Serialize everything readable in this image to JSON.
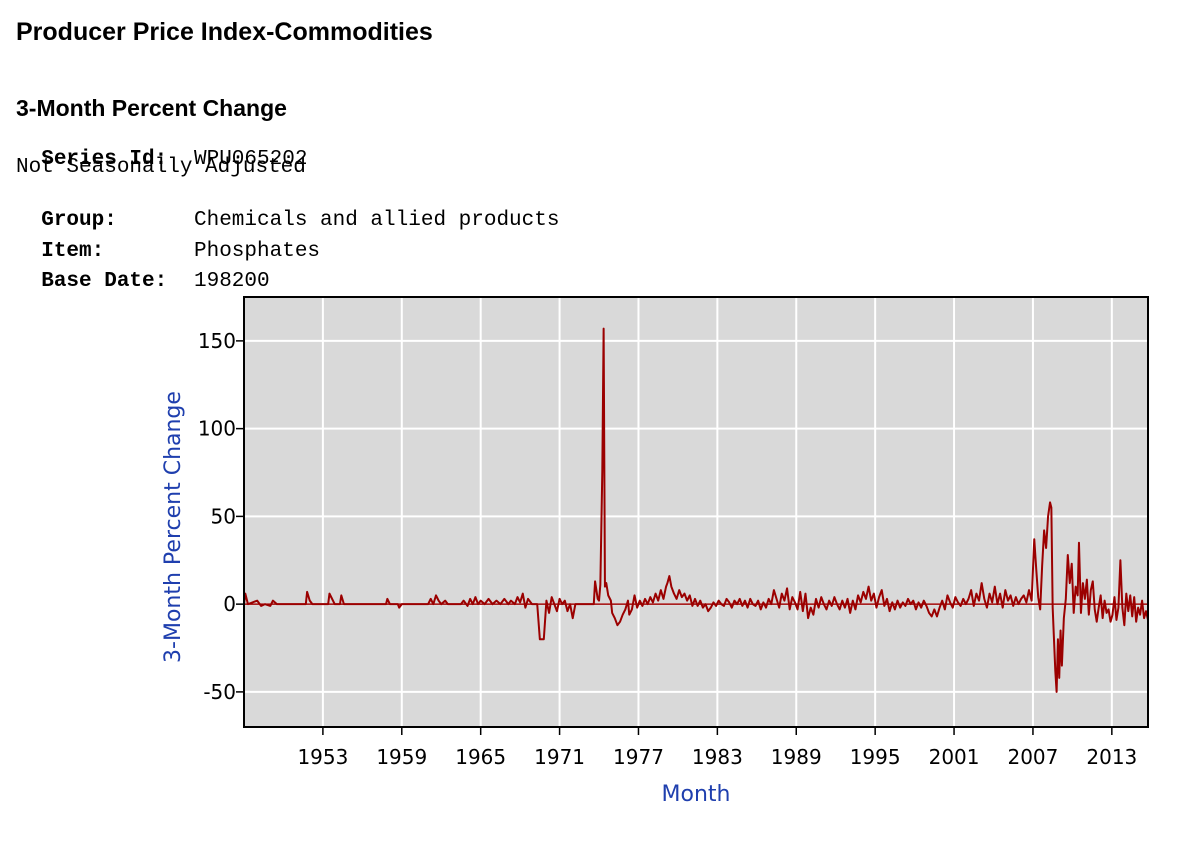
{
  "header": {
    "title": "Producer Price Index-Commodities",
    "subtitle": "3-Month Percent Change"
  },
  "meta": {
    "series_label": "Series Id:",
    "series_value": "WPU065202",
    "seasonal": "Not Seasonally Adjusted",
    "group_label": "Group:",
    "group_value": "Chemicals and allied products",
    "item_label": "Item:",
    "item_value": "Phosphates",
    "base_label": "Base Date:",
    "base_value": "198200"
  },
  "chart_data": {
    "type": "line",
    "title": "",
    "xlabel": "Month",
    "ylabel": "3-Month Percent Change",
    "xlim": [
      1947.0,
      2015.75
    ],
    "ylim": [
      -70,
      175
    ],
    "x_ticks": [
      1953,
      1959,
      1965,
      1971,
      1977,
      1983,
      1989,
      1995,
      2001,
      2007,
      2013
    ],
    "y_ticks": [
      -50,
      0,
      50,
      100,
      150
    ],
    "grid": true,
    "colors": {
      "line": "#9b0000",
      "plot_bg": "#d9d9d9",
      "grid": "#ffffff",
      "axis_label": "#1f3fae"
    },
    "series": [
      {
        "name": "WPU065202",
        "points": [
          [
            1947.0,
            0
          ],
          [
            1947.1,
            6
          ],
          [
            1947.3,
            0
          ],
          [
            1948.0,
            2
          ],
          [
            1948.3,
            -1
          ],
          [
            1948.6,
            0
          ],
          [
            1949.0,
            -1
          ],
          [
            1949.2,
            2
          ],
          [
            1949.5,
            0
          ],
          [
            1950.0,
            0
          ],
          [
            1951.0,
            0
          ],
          [
            1951.7,
            0
          ],
          [
            1951.8,
            7
          ],
          [
            1952.0,
            2
          ],
          [
            1952.2,
            0
          ],
          [
            1953.0,
            0
          ],
          [
            1953.4,
            0
          ],
          [
            1953.5,
            6
          ],
          [
            1953.7,
            3
          ],
          [
            1953.9,
            0
          ],
          [
            1954.3,
            0
          ],
          [
            1954.4,
            5
          ],
          [
            1954.6,
            0
          ],
          [
            1957.8,
            0
          ],
          [
            1957.9,
            3
          ],
          [
            1958.1,
            0
          ],
          [
            1958.7,
            0
          ],
          [
            1958.8,
            -2
          ],
          [
            1959.0,
            0
          ],
          [
            1961.0,
            0
          ],
          [
            1961.2,
            3
          ],
          [
            1961.4,
            0
          ],
          [
            1961.6,
            5
          ],
          [
            1961.8,
            2
          ],
          [
            1962.0,
            0
          ],
          [
            1962.3,
            2
          ],
          [
            1962.5,
            0
          ],
          [
            1963.5,
            0
          ],
          [
            1963.7,
            2
          ],
          [
            1964.0,
            -1
          ],
          [
            1964.2,
            3
          ],
          [
            1964.4,
            0
          ],
          [
            1964.6,
            4
          ],
          [
            1964.8,
            0
          ],
          [
            1965.0,
            2
          ],
          [
            1965.3,
            0
          ],
          [
            1965.6,
            3
          ],
          [
            1965.9,
            0
          ],
          [
            1966.2,
            2
          ],
          [
            1966.5,
            0
          ],
          [
            1966.8,
            3
          ],
          [
            1967.1,
            0
          ],
          [
            1967.3,
            2
          ],
          [
            1967.6,
            0
          ],
          [
            1967.8,
            4
          ],
          [
            1968.0,
            1
          ],
          [
            1968.2,
            6
          ],
          [
            1968.4,
            -2
          ],
          [
            1968.6,
            3
          ],
          [
            1968.9,
            0
          ],
          [
            1969.3,
            0
          ],
          [
            1969.5,
            -20
          ],
          [
            1969.8,
            -20
          ],
          [
            1970.0,
            2
          ],
          [
            1970.2,
            -5
          ],
          [
            1970.4,
            4
          ],
          [
            1970.6,
            0
          ],
          [
            1970.8,
            -4
          ],
          [
            1971.0,
            3
          ],
          [
            1971.2,
            0
          ],
          [
            1971.4,
            2
          ],
          [
            1971.6,
            -4
          ],
          [
            1971.8,
            0
          ],
          [
            1972.0,
            -8
          ],
          [
            1972.2,
            0
          ],
          [
            1973.0,
            0
          ],
          [
            1973.6,
            0
          ],
          [
            1973.7,
            13
          ],
          [
            1973.9,
            3
          ],
          [
            1974.0,
            2
          ],
          [
            1974.1,
            11
          ],
          [
            1974.25,
            76
          ],
          [
            1974.35,
            157
          ],
          [
            1974.45,
            10
          ],
          [
            1974.55,
            12
          ],
          [
            1974.7,
            5
          ],
          [
            1974.9,
            2
          ],
          [
            1975.0,
            -5
          ],
          [
            1975.2,
            -8
          ],
          [
            1975.4,
            -12
          ],
          [
            1975.6,
            -10
          ],
          [
            1975.8,
            -6
          ],
          [
            1976.0,
            -3
          ],
          [
            1976.2,
            2
          ],
          [
            1976.3,
            -6
          ],
          [
            1976.5,
            -3
          ],
          [
            1976.7,
            5
          ],
          [
            1976.9,
            -2
          ],
          [
            1977.1,
            2
          ],
          [
            1977.3,
            -1
          ],
          [
            1977.5,
            3
          ],
          [
            1977.7,
            0
          ],
          [
            1977.9,
            4
          ],
          [
            1978.1,
            1
          ],
          [
            1978.3,
            6
          ],
          [
            1978.5,
            2
          ],
          [
            1978.7,
            8
          ],
          [
            1978.9,
            3
          ],
          [
            1979.1,
            10
          ],
          [
            1979.2,
            12
          ],
          [
            1979.35,
            16
          ],
          [
            1979.5,
            10
          ],
          [
            1979.7,
            6
          ],
          [
            1979.9,
            3
          ],
          [
            1980.1,
            8
          ],
          [
            1980.3,
            4
          ],
          [
            1980.5,
            6
          ],
          [
            1980.7,
            2
          ],
          [
            1980.9,
            5
          ],
          [
            1981.1,
            -1
          ],
          [
            1981.3,
            3
          ],
          [
            1981.5,
            -1
          ],
          [
            1981.7,
            2
          ],
          [
            1981.9,
            -2
          ],
          [
            1982.1,
            0
          ],
          [
            1982.3,
            -4
          ],
          [
            1982.5,
            -2
          ],
          [
            1982.7,
            1
          ],
          [
            1982.9,
            -1
          ],
          [
            1983.1,
            2
          ],
          [
            1983.3,
            0
          ],
          [
            1983.5,
            -1
          ],
          [
            1983.7,
            3
          ],
          [
            1983.9,
            1
          ],
          [
            1984.1,
            -2
          ],
          [
            1984.3,
            2
          ],
          [
            1984.5,
            0
          ],
          [
            1984.7,
            3
          ],
          [
            1984.9,
            -1
          ],
          [
            1985.1,
            2
          ],
          [
            1985.3,
            -2
          ],
          [
            1985.5,
            3
          ],
          [
            1985.7,
            0
          ],
          [
            1985.9,
            -1
          ],
          [
            1986.1,
            2
          ],
          [
            1986.3,
            -3
          ],
          [
            1986.5,
            1
          ],
          [
            1986.7,
            -2
          ],
          [
            1986.9,
            3
          ],
          [
            1987.1,
            0
          ],
          [
            1987.3,
            8
          ],
          [
            1987.5,
            3
          ],
          [
            1987.7,
            -2
          ],
          [
            1987.9,
            6
          ],
          [
            1988.1,
            2
          ],
          [
            1988.3,
            9
          ],
          [
            1988.5,
            -3
          ],
          [
            1988.7,
            4
          ],
          [
            1988.9,
            1
          ],
          [
            1989.1,
            -3
          ],
          [
            1989.3,
            7
          ],
          [
            1989.5,
            -4
          ],
          [
            1989.7,
            6
          ],
          [
            1989.9,
            -8
          ],
          [
            1990.1,
            -2
          ],
          [
            1990.3,
            -6
          ],
          [
            1990.5,
            3
          ],
          [
            1990.7,
            -2
          ],
          [
            1990.9,
            4
          ],
          [
            1991.1,
            0
          ],
          [
            1991.3,
            -3
          ],
          [
            1991.5,
            2
          ],
          [
            1991.7,
            -1
          ],
          [
            1991.9,
            4
          ],
          [
            1992.1,
            0
          ],
          [
            1992.3,
            -3
          ],
          [
            1992.5,
            2
          ],
          [
            1992.7,
            -2
          ],
          [
            1992.9,
            3
          ],
          [
            1993.1,
            -5
          ],
          [
            1993.3,
            2
          ],
          [
            1993.5,
            -3
          ],
          [
            1993.7,
            5
          ],
          [
            1993.9,
            1
          ],
          [
            1994.1,
            7
          ],
          [
            1994.3,
            3
          ],
          [
            1994.5,
            10
          ],
          [
            1994.7,
            2
          ],
          [
            1994.9,
            6
          ],
          [
            1995.1,
            -2
          ],
          [
            1995.3,
            4
          ],
          [
            1995.5,
            8
          ],
          [
            1995.7,
            -1
          ],
          [
            1995.9,
            3
          ],
          [
            1996.1,
            -4
          ],
          [
            1996.3,
            1
          ],
          [
            1996.5,
            -3
          ],
          [
            1996.7,
            2
          ],
          [
            1996.9,
            -2
          ],
          [
            1997.1,
            1
          ],
          [
            1997.3,
            -1
          ],
          [
            1997.5,
            3
          ],
          [
            1997.7,
            0
          ],
          [
            1997.9,
            2
          ],
          [
            1998.1,
            -3
          ],
          [
            1998.3,
            1
          ],
          [
            1998.5,
            -2
          ],
          [
            1998.7,
            2
          ],
          [
            1998.9,
            -1
          ],
          [
            1999.1,
            -5
          ],
          [
            1999.3,
            -7
          ],
          [
            1999.5,
            -3
          ],
          [
            1999.7,
            -7
          ],
          [
            1999.9,
            -2
          ],
          [
            2000.1,
            2
          ],
          [
            2000.3,
            -3
          ],
          [
            2000.5,
            5
          ],
          [
            2000.7,
            1
          ],
          [
            2000.9,
            -2
          ],
          [
            2001.1,
            4
          ],
          [
            2001.3,
            1
          ],
          [
            2001.5,
            -1
          ],
          [
            2001.7,
            3
          ],
          [
            2001.9,
            0
          ],
          [
            2002.1,
            3
          ],
          [
            2002.3,
            8
          ],
          [
            2002.5,
            -1
          ],
          [
            2002.7,
            6
          ],
          [
            2002.9,
            2
          ],
          [
            2003.1,
            12
          ],
          [
            2003.3,
            3
          ],
          [
            2003.5,
            -2
          ],
          [
            2003.7,
            6
          ],
          [
            2003.9,
            1
          ],
          [
            2004.1,
            10
          ],
          [
            2004.3,
            0
          ],
          [
            2004.5,
            6
          ],
          [
            2004.7,
            -2
          ],
          [
            2004.9,
            8
          ],
          [
            2005.1,
            2
          ],
          [
            2005.3,
            5
          ],
          [
            2005.5,
            -1
          ],
          [
            2005.7,
            4
          ],
          [
            2005.9,
            0
          ],
          [
            2006.1,
            3
          ],
          [
            2006.3,
            5
          ],
          [
            2006.5,
            1
          ],
          [
            2006.7,
            8
          ],
          [
            2006.9,
            2
          ],
          [
            2007.1,
            37
          ],
          [
            2007.25,
            20
          ],
          [
            2007.4,
            4
          ],
          [
            2007.55,
            -3
          ],
          [
            2007.7,
            22
          ],
          [
            2007.85,
            42
          ],
          [
            2008.0,
            32
          ],
          [
            2008.15,
            50
          ],
          [
            2008.3,
            58
          ],
          [
            2008.4,
            55
          ],
          [
            2008.5,
            -2
          ],
          [
            2008.6,
            -20
          ],
          [
            2008.7,
            -38
          ],
          [
            2008.8,
            -50
          ],
          [
            2008.9,
            -20
          ],
          [
            2009.0,
            -42
          ],
          [
            2009.1,
            -15
          ],
          [
            2009.2,
            -35
          ],
          [
            2009.35,
            -8
          ],
          [
            2009.5,
            3
          ],
          [
            2009.65,
            28
          ],
          [
            2009.8,
            12
          ],
          [
            2009.95,
            23
          ],
          [
            2010.1,
            -5
          ],
          [
            2010.25,
            10
          ],
          [
            2010.4,
            5
          ],
          [
            2010.5,
            35
          ],
          [
            2010.65,
            -5
          ],
          [
            2010.8,
            12
          ],
          [
            2010.95,
            3
          ],
          [
            2011.1,
            14
          ],
          [
            2011.25,
            -6
          ],
          [
            2011.4,
            8
          ],
          [
            2011.55,
            13
          ],
          [
            2011.7,
            -3
          ],
          [
            2011.85,
            -10
          ],
          [
            2012.0,
            -2
          ],
          [
            2012.15,
            5
          ],
          [
            2012.3,
            -8
          ],
          [
            2012.45,
            2
          ],
          [
            2012.6,
            -5
          ],
          [
            2012.75,
            -3
          ],
          [
            2012.9,
            -10
          ],
          [
            2013.05,
            -6
          ],
          [
            2013.2,
            4
          ],
          [
            2013.35,
            -9
          ],
          [
            2013.5,
            -2
          ],
          [
            2013.65,
            25
          ],
          [
            2013.8,
            -2
          ],
          [
            2013.95,
            -12
          ],
          [
            2014.1,
            6
          ],
          [
            2014.25,
            -4
          ],
          [
            2014.4,
            5
          ],
          [
            2014.55,
            -7
          ],
          [
            2014.7,
            4
          ],
          [
            2014.85,
            -10
          ],
          [
            2015.0,
            -2
          ],
          [
            2015.15,
            -6
          ],
          [
            2015.3,
            2
          ],
          [
            2015.45,
            -8
          ],
          [
            2015.6,
            -4
          ],
          [
            2015.75,
            -9
          ]
        ]
      }
    ]
  }
}
